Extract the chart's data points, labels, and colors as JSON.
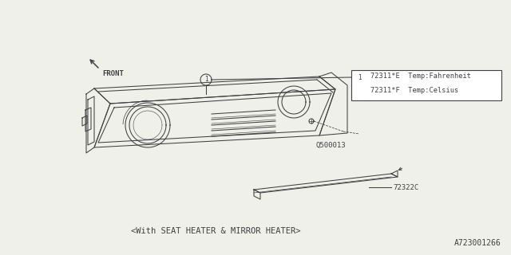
{
  "bg_color": "#f0f0eb",
  "line_color": "#404040",
  "bottom_text": "<With SEAT HEATER & MIRROR HEATER>",
  "part_id_text": "A723001266",
  "legend_line1": "72311*E  Temp:Fahrenheit",
  "legend_line2": "72311*F  Temp:Celsius",
  "label_q500013": "Q500013",
  "label_72322c": "72322C",
  "front_label": "FRONT"
}
